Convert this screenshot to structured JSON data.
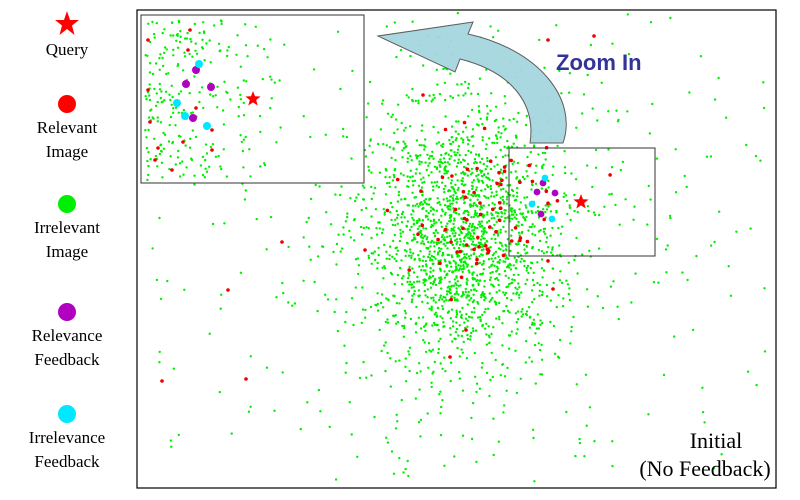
{
  "legend": {
    "items": [
      {
        "label": "Query",
        "icon": "red-star-icon",
        "color": "#ff0000"
      },
      {
        "label": "Relevant Image",
        "icon": "red-dot-icon",
        "color": "#ff0000"
      },
      {
        "label": "Irrelevant Image",
        "icon": "green-dot-icon",
        "color": "#00ee00"
      },
      {
        "label": "Relevance Feedback",
        "icon": "purple-dot-icon",
        "color": "#b000c0"
      },
      {
        "label": "Irrelevance Feedback",
        "icon": "cyan-dot-icon",
        "color": "#00e8ff"
      }
    ]
  },
  "plot": {
    "zoom_label": "Zoom In",
    "zoom_label_color": "#333399",
    "caption_line1": "Initial",
    "caption_line2": "(No Feedback)",
    "arrow_color": "#a6d6e0"
  }
}
